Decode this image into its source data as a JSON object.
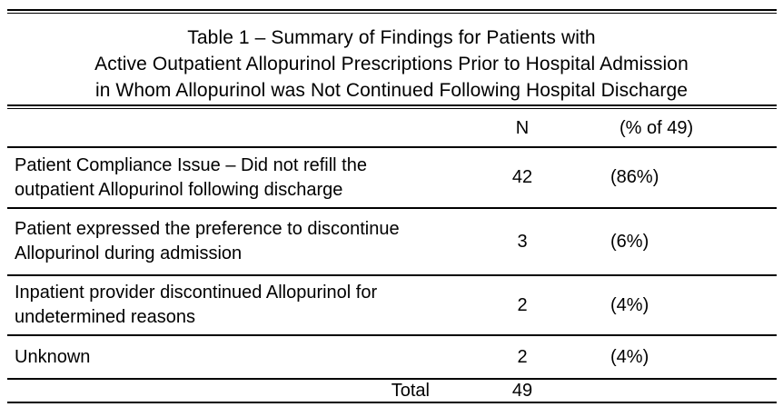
{
  "page": {
    "background": "#ffffff",
    "text_color": "#000000",
    "rule_color": "#000000"
  },
  "title": {
    "line1": "Table 1 – Summary of Findings for Patients with",
    "line2": "Active Outpatient Allopurinol Prescriptions Prior to Hospital Admission",
    "line3": "in Whom Allopurinol was Not Continued Following Hospital Discharge"
  },
  "table": {
    "header": {
      "label": "",
      "n": "N",
      "pct": "(% of 49)"
    },
    "rows": [
      {
        "line1": "Patient Compliance Issue – Did not refill the",
        "line2": "outpatient Allopurinol following discharge",
        "n": "42",
        "pct": "(86%)"
      },
      {
        "line1": "Patient expressed the preference to discontinue",
        "line2": "Allopurinol during admission",
        "n": "3",
        "pct": "(6%)"
      },
      {
        "line1": "Inpatient provider discontinued Allopurinol for",
        "line2": "undetermined reasons",
        "n": "2",
        "pct": "(4%)"
      },
      {
        "line1": "Unknown",
        "line2": "",
        "n": "2",
        "pct": "(4%)"
      }
    ],
    "total": {
      "label": "Total",
      "n": "49",
      "pct": ""
    }
  }
}
